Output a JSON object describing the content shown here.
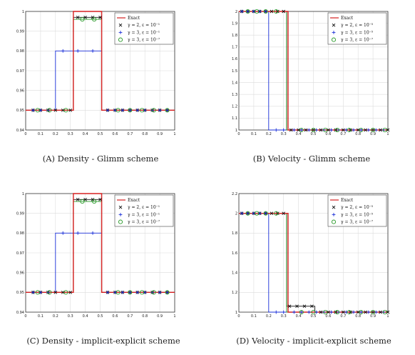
{
  "captions": {
    "a": "(A) Density - Glimm scheme",
    "b": "(B) Velocity - Glimm scheme",
    "c": "(C) Density - implicit-explicit scheme",
    "d": "(D) Velocity - implicit-explicit scheme"
  },
  "colors": {
    "exact": "#d62020",
    "g2": "#111111",
    "g3a": "#1a2fd8",
    "g3b": "#2a9a2a"
  },
  "chart_data": [
    {
      "id": "a",
      "type": "line",
      "xlim": [
        0,
        1
      ],
      "ylim": [
        0.94,
        1.0
      ],
      "xticks": [
        "0",
        "0.1",
        "0.2",
        "0.3",
        "0.4",
        "0.5",
        "0.6",
        "0.7",
        "0.8",
        "0.9",
        "1"
      ],
      "yticks": [
        "0.94",
        "0.95",
        "0.96",
        "0.97",
        "0.98",
        "0.99",
        "1"
      ],
      "grid": true,
      "legend_position": "top-right",
      "series": [
        {
          "name": "Exact",
          "style": "line",
          "color": "#d62020",
          "x": [
            0,
            0.32,
            0.32,
            0.51,
            0.51,
            1
          ],
          "y": [
            0.95,
            0.95,
            1.0,
            1.0,
            0.95,
            0.95
          ]
        },
        {
          "name": "γ = 2, ε = 10⁻¹",
          "style": "x",
          "color": "#111111",
          "x": [
            0,
            0.32,
            0.32,
            0.51,
            0.51,
            1
          ],
          "y": [
            0.95,
            0.95,
            0.997,
            0.997,
            0.95,
            0.95
          ],
          "mx": [
            0.05,
            0.1,
            0.15,
            0.2,
            0.25,
            0.3,
            0.35,
            0.4,
            0.45,
            0.5,
            0.55,
            0.6,
            0.65,
            0.7,
            0.75,
            0.8,
            0.85,
            0.9,
            0.95
          ],
          "my": [
            0.95,
            0.95,
            0.95,
            0.95,
            0.95,
            0.95,
            0.997,
            0.997,
            0.997,
            0.997,
            0.95,
            0.95,
            0.95,
            0.95,
            0.95,
            0.95,
            0.95,
            0.95,
            0.95
          ]
        },
        {
          "name": "γ = 3, ε = 10⁻¹",
          "style": "+",
          "color": "#1a2fd8",
          "x": [
            0,
            0.2,
            0.2,
            0.51,
            0.51,
            1
          ],
          "y": [
            0.95,
            0.95,
            0.98,
            0.98,
            0.95,
            0.95
          ],
          "mx": [
            0.05,
            0.1,
            0.15,
            0.25,
            0.35,
            0.45,
            0.55,
            0.6,
            0.65,
            0.7,
            0.75,
            0.8,
            0.85,
            0.9,
            0.95
          ],
          "my": [
            0.95,
            0.95,
            0.95,
            0.98,
            0.98,
            0.98,
            0.95,
            0.95,
            0.95,
            0.95,
            0.95,
            0.95,
            0.95,
            0.95,
            0.95
          ]
        },
        {
          "name": "γ = 3, ε = 10⁻⁷",
          "style": "o",
          "color": "#2a9a2a",
          "x": [
            0,
            0.32,
            0.32,
            0.51,
            0.51,
            1
          ],
          "y": [
            0.95,
            0.95,
            0.996,
            0.996,
            0.95,
            0.95
          ],
          "mx": [
            0.08,
            0.16,
            0.27,
            0.38,
            0.46,
            0.62,
            0.7,
            0.78,
            0.86,
            0.95
          ],
          "my": [
            0.95,
            0.95,
            0.95,
            0.996,
            0.996,
            0.95,
            0.95,
            0.95,
            0.95,
            0.95
          ]
        }
      ],
      "legend": [
        "Exact",
        "γ = 2, ε = 10⁻¹",
        "γ = 3, ε = 10⁻¹",
        "γ = 3, ε = 10⁻⁷"
      ]
    },
    {
      "id": "b",
      "type": "line",
      "xlim": [
        0,
        1
      ],
      "ylim": [
        1.0,
        2.0
      ],
      "xticks": [
        "0",
        "0.1",
        "0.2",
        "0.3",
        "0.4",
        "0.5",
        "0.6",
        "0.7",
        "0.8",
        "0.9",
        "1"
      ],
      "yticks": [
        "1",
        "1.1",
        "1.2",
        "1.3",
        "1.4",
        "1.5",
        "1.6",
        "1.7",
        "1.8",
        "1.9",
        "2"
      ],
      "grid": true,
      "legend_position": "top-right",
      "series": [
        {
          "name": "Exact",
          "style": "line",
          "color": "#d62020",
          "x": [
            0,
            0.33,
            0.33,
            1
          ],
          "y": [
            2.0,
            2.0,
            1.0,
            1.0
          ]
        },
        {
          "name": "γ = 2, ε = 10⁻⁵",
          "style": "x",
          "color": "#111111",
          "x": [
            0,
            0.32,
            0.32,
            1
          ],
          "y": [
            2.0,
            2.0,
            1.0,
            1.0
          ],
          "mx": [
            0.02,
            0.06,
            0.1,
            0.14,
            0.18,
            0.22,
            0.26,
            0.3,
            0.35,
            0.4,
            0.45,
            0.5,
            0.55,
            0.6,
            0.65,
            0.7,
            0.75,
            0.8,
            0.85,
            0.9,
            0.95,
            1.0
          ],
          "my": [
            2,
            2,
            2,
            2,
            2,
            2,
            2,
            2,
            1,
            1,
            1,
            1,
            1,
            1,
            1,
            1,
            1,
            1,
            1,
            1,
            1,
            1
          ]
        },
        {
          "name": "γ = 3, ε = 10⁻⁵",
          "style": "+",
          "color": "#1a2fd8",
          "x": [
            0,
            0.2,
            0.2,
            1
          ],
          "y": [
            2.0,
            2.0,
            1.0,
            1.0
          ],
          "mx": [
            0.02,
            0.06,
            0.1,
            0.14,
            0.18,
            0.25,
            0.3,
            0.37,
            0.42,
            0.47,
            0.52,
            0.57,
            0.62,
            0.67,
            0.72,
            0.77,
            0.82,
            0.87,
            0.92,
            0.97
          ],
          "my": [
            2,
            2,
            2,
            2,
            2,
            1,
            1,
            1,
            1,
            1,
            1,
            1,
            1,
            1,
            1,
            1,
            1,
            1,
            1,
            1
          ]
        },
        {
          "name": "γ = 3, ε = 10⁻⁷",
          "style": "o",
          "color": "#2a9a2a",
          "x": [
            0,
            0.32,
            0.32,
            1
          ],
          "y": [
            2.0,
            2.0,
            1.0,
            1.0
          ],
          "mx": [
            0.06,
            0.12,
            0.18,
            0.25,
            0.42,
            0.5,
            0.58,
            0.66,
            0.74,
            0.82,
            0.9,
            0.98
          ],
          "my": [
            2,
            2,
            2,
            2,
            1,
            1,
            1,
            1,
            1,
            1,
            1,
            1
          ]
        }
      ],
      "legend": [
        "Exact",
        "γ = 2, ε = 10⁻⁵",
        "γ = 3, ε = 10⁻⁵",
        "γ = 3, ε = 10⁻⁷"
      ]
    },
    {
      "id": "c",
      "type": "line",
      "xlim": [
        0,
        1
      ],
      "ylim": [
        0.94,
        1.0
      ],
      "xticks": [
        "0",
        "0.1",
        "0.2",
        "0.3",
        "0.4",
        "0.5",
        "0.6",
        "0.7",
        "0.8",
        "0.9",
        "1"
      ],
      "yticks": [
        "0.94",
        "0.95",
        "0.96",
        "0.97",
        "0.98",
        "0.99",
        "1"
      ],
      "grid": true,
      "legend_position": "top-right",
      "series": [
        {
          "name": "Exact",
          "style": "line",
          "color": "#d62020",
          "x": [
            0,
            0.32,
            0.32,
            0.51,
            0.51,
            1
          ],
          "y": [
            0.95,
            0.95,
            1.0,
            1.0,
            0.95,
            0.95
          ]
        },
        {
          "name": "γ = 2, ε = 10⁻¹",
          "style": "x",
          "color": "#111111",
          "x": [
            0,
            0.32,
            0.32,
            0.51,
            0.51,
            1
          ],
          "y": [
            0.95,
            0.95,
            0.997,
            0.997,
            0.95,
            0.95
          ],
          "mx": [
            0.05,
            0.1,
            0.15,
            0.2,
            0.25,
            0.3,
            0.35,
            0.4,
            0.45,
            0.5,
            0.55,
            0.6,
            0.65,
            0.7,
            0.75,
            0.8,
            0.85,
            0.9,
            0.95
          ],
          "my": [
            0.95,
            0.95,
            0.95,
            0.95,
            0.95,
            0.95,
            0.997,
            0.997,
            0.997,
            0.997,
            0.95,
            0.95,
            0.95,
            0.95,
            0.95,
            0.95,
            0.95,
            0.95,
            0.95
          ]
        },
        {
          "name": "γ = 3, ε = 10⁻¹",
          "style": "+",
          "color": "#1a2fd8",
          "x": [
            0,
            0.2,
            0.2,
            0.51,
            0.51,
            1
          ],
          "y": [
            0.95,
            0.95,
            0.98,
            0.98,
            0.95,
            0.95
          ],
          "mx": [
            0.05,
            0.1,
            0.15,
            0.25,
            0.35,
            0.45,
            0.55,
            0.6,
            0.65,
            0.7,
            0.75,
            0.8,
            0.85,
            0.9,
            0.95
          ],
          "my": [
            0.95,
            0.95,
            0.95,
            0.98,
            0.98,
            0.98,
            0.95,
            0.95,
            0.95,
            0.95,
            0.95,
            0.95,
            0.95,
            0.95,
            0.95
          ]
        },
        {
          "name": "γ = 3, ε = 10⁻⁷",
          "style": "o",
          "color": "#2a9a2a",
          "x": [
            0,
            0.32,
            0.32,
            0.51,
            0.51,
            1
          ],
          "y": [
            0.95,
            0.95,
            0.996,
            0.996,
            0.95,
            0.95
          ],
          "mx": [
            0.08,
            0.16,
            0.27,
            0.38,
            0.46,
            0.62,
            0.7,
            0.78,
            0.86,
            0.95
          ],
          "my": [
            0.95,
            0.95,
            0.95,
            0.996,
            0.996,
            0.95,
            0.95,
            0.95,
            0.95,
            0.95
          ]
        }
      ],
      "legend": [
        "Exact",
        "γ = 2, ε = 10⁻¹",
        "γ = 3, ε = 10⁻¹",
        "γ = 3, ε = 10⁻⁷"
      ]
    },
    {
      "id": "d",
      "type": "line",
      "xlim": [
        0,
        1
      ],
      "ylim": [
        1.0,
        2.2
      ],
      "xticks": [
        "0",
        "0.1",
        "0.2",
        "0.3",
        "0.4",
        "0.5",
        "0.6",
        "0.7",
        "0.8",
        "0.9",
        "1"
      ],
      "yticks": [
        "1",
        "1.2",
        "1.4",
        "1.6",
        "1.8",
        "2",
        "2.2"
      ],
      "grid": true,
      "legend_position": "top-right",
      "series": [
        {
          "name": "Exact",
          "style": "line",
          "color": "#d62020",
          "x": [
            0,
            0.33,
            0.33,
            1
          ],
          "y": [
            2.0,
            2.0,
            1.0,
            1.0
          ]
        },
        {
          "name": "γ = 2, ε = 10⁻⁵",
          "style": "x",
          "color": "#111111",
          "x": [
            0,
            0.32,
            0.32,
            0.51,
            0.51,
            1
          ],
          "y": [
            2.0,
            2.0,
            1.06,
            1.06,
            1.0,
            1.0
          ],
          "mx": [
            0.02,
            0.06,
            0.1,
            0.14,
            0.18,
            0.22,
            0.26,
            0.3,
            0.34,
            0.39,
            0.44,
            0.49,
            0.55,
            0.6,
            0.65,
            0.7,
            0.75,
            0.8,
            0.85,
            0.9,
            0.95,
            1.0
          ],
          "my": [
            2,
            2,
            2,
            2,
            2,
            2,
            2,
            2,
            1.06,
            1.06,
            1.06,
            1.06,
            1,
            1,
            1,
            1,
            1,
            1,
            1,
            1,
            1,
            1
          ]
        },
        {
          "name": "γ = 3, ε = 10⁻⁵",
          "style": "+",
          "color": "#1a2fd8",
          "x": [
            0,
            0.2,
            0.2,
            1
          ],
          "y": [
            2.0,
            2.0,
            1.0,
            1.0
          ],
          "mx": [
            0.02,
            0.06,
            0.1,
            0.14,
            0.18,
            0.25,
            0.3,
            0.37,
            0.42,
            0.47,
            0.52,
            0.57,
            0.62,
            0.67,
            0.72,
            0.77,
            0.82,
            0.87,
            0.92,
            0.97
          ],
          "my": [
            2,
            2,
            2,
            2,
            2,
            1,
            1,
            1,
            1,
            1,
            1,
            1,
            1,
            1,
            1,
            1,
            1,
            1,
            1,
            1
          ]
        },
        {
          "name": "γ = 3, ε = 10⁻⁷",
          "style": "o",
          "color": "#2a9a2a",
          "x": [
            0,
            0.32,
            0.32,
            1
          ],
          "y": [
            2.0,
            2.0,
            1.0,
            1.0
          ],
          "mx": [
            0.06,
            0.12,
            0.18,
            0.25,
            0.42,
            0.5,
            0.58,
            0.66,
            0.74,
            0.82,
            0.9,
            0.98
          ],
          "my": [
            2,
            2,
            2,
            2,
            1,
            1,
            1,
            1,
            1,
            1,
            1,
            1
          ]
        }
      ],
      "legend": [
        "Exact",
        "γ = 2, ε = 10⁻⁵",
        "γ = 3, ε = 10⁻⁵",
        "γ = 3, ε = 10⁻⁷"
      ]
    }
  ]
}
